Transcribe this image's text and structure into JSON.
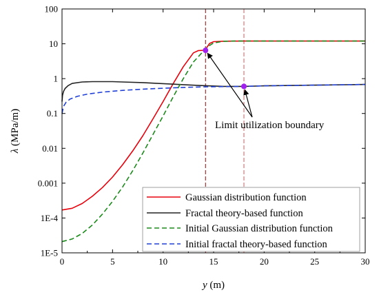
{
  "chart_data": {
    "type": "line",
    "xlabel_var": "y",
    "xlabel_unit": " (m)",
    "ylabel_var": "λ",
    "ylabel_unit": " (MPa/m)",
    "xlim": [
      0,
      30
    ],
    "ylim": [
      1e-05,
      100
    ],
    "yscale": "log",
    "x_ticks": [
      0,
      5,
      10,
      15,
      20,
      25,
      30
    ],
    "y_ticks": [
      {
        "value": 1e-05,
        "label": "1E-5"
      },
      {
        "value": 0.0001,
        "label": "1E-4"
      },
      {
        "value": 0.001,
        "label": "0.001"
      },
      {
        "value": 0.01,
        "label": "0.01"
      },
      {
        "value": 0.1,
        "label": "0.1"
      },
      {
        "value": 1,
        "label": "1"
      },
      {
        "value": 10,
        "label": "10"
      },
      {
        "value": 100,
        "label": "100"
      }
    ],
    "legend_position": "bottom-right",
    "series": [
      {
        "name": "Gaussian distribution function",
        "color": "#e8000b",
        "dash": "solid",
        "x": [
          0,
          1,
          2,
          3,
          4,
          5,
          6,
          7,
          8,
          9,
          10,
          11,
          12,
          13,
          13.5,
          14,
          14.3,
          14.6,
          15,
          16,
          18,
          20,
          25,
          30
        ],
        "y": [
          0.00017,
          0.00019,
          0.00026,
          0.00042,
          0.00075,
          0.0015,
          0.0034,
          0.0085,
          0.023,
          0.07,
          0.22,
          0.72,
          2.2,
          5.5,
          6.4,
          6.5,
          7.6,
          10.2,
          11.5,
          11.9,
          12,
          12,
          12,
          12
        ]
      },
      {
        "name": "Fractal theory-based function",
        "color": "#222222",
        "dash": "solid",
        "x": [
          0,
          0.05,
          0.15,
          0.3,
          0.6,
          1,
          2,
          3,
          4,
          5,
          6,
          8,
          10,
          12,
          14,
          16,
          18,
          20,
          25,
          30
        ],
        "y": [
          0.22,
          0.33,
          0.43,
          0.52,
          0.63,
          0.73,
          0.8,
          0.82,
          0.82,
          0.82,
          0.8,
          0.77,
          0.72,
          0.67,
          0.63,
          0.6,
          0.6,
          0.62,
          0.65,
          0.68
        ]
      },
      {
        "name": "Initial Gaussian distribution function",
        "color": "#1a8a1a",
        "dash": "dashed",
        "x": [
          0,
          1,
          2,
          3,
          4,
          5,
          6,
          7,
          8,
          9,
          10,
          11,
          12,
          13,
          14,
          14.5,
          15,
          16,
          17,
          18,
          20,
          25,
          30
        ],
        "y": [
          2.1e-05,
          2.5e-05,
          3.6e-05,
          6.3e-05,
          0.00013,
          0.0003,
          0.00078,
          0.0023,
          0.0073,
          0.025,
          0.085,
          0.3,
          1.0,
          3.0,
          6.2,
          8.6,
          10.6,
          11.8,
          12,
          12,
          12,
          12,
          12
        ]
      },
      {
        "name": "Initial fractal theory-based function",
        "color": "#1f3fd6",
        "dash": "dashed",
        "x": [
          0,
          0.15,
          0.4,
          0.8,
          1.5,
          2.5,
          4,
          6,
          8,
          10,
          12,
          14,
          16,
          18,
          20,
          25,
          30
        ],
        "y": [
          0.1,
          0.16,
          0.21,
          0.26,
          0.31,
          0.36,
          0.41,
          0.46,
          0.5,
          0.53,
          0.56,
          0.58,
          0.59,
          0.6,
          0.62,
          0.65,
          0.68
        ]
      }
    ],
    "vertical_lines": [
      {
        "x": 14.2,
        "color": "#9b1c1c"
      },
      {
        "x": 18.0,
        "color": "#e06666"
      }
    ],
    "markers": [
      {
        "x": 14.2,
        "y": 6.5,
        "color": "#a020f0"
      },
      {
        "x": 18.0,
        "y": 0.6,
        "color": "#a020f0"
      }
    ],
    "annotation": {
      "text": "Limit utilization boundary",
      "arrow_targets": [
        [
          14.2,
          6.5
        ],
        [
          18.0,
          0.6
        ]
      ]
    }
  }
}
